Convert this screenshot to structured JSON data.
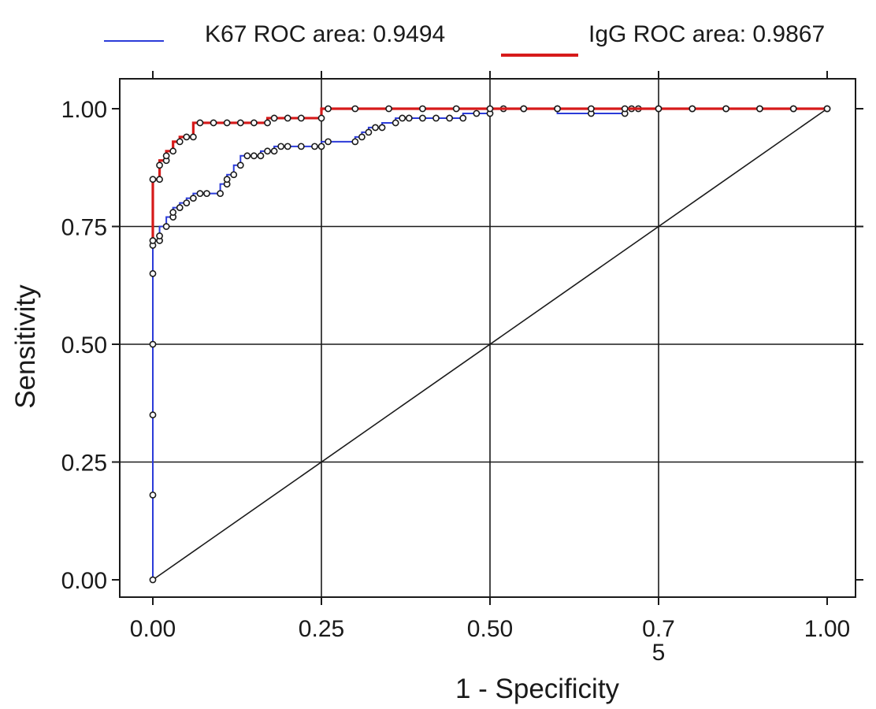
{
  "chart_data": {
    "type": "line",
    "title": "",
    "xlabel": "1 - Specificity",
    "ylabel": "Sensitivity",
    "xlim": [
      0,
      1
    ],
    "ylim": [
      0,
      1
    ],
    "x_ticks": [
      "0.00",
      "0.25",
      "0.50",
      "0.7\n5",
      "1.00"
    ],
    "x_tick_values": [
      0,
      0.25,
      0.5,
      0.75,
      1
    ],
    "y_ticks": [
      "0.00",
      "0.25",
      "0.50",
      "0.75",
      "1.00"
    ],
    "y_tick_values": [
      0,
      0.25,
      0.5,
      0.75,
      1
    ],
    "grid": true,
    "legend_position": "top",
    "series": [
      {
        "name": "K67 ROC area: 0.9494",
        "color": "#2b3bd9",
        "marker": "circle",
        "x": [
          0,
          0,
          0,
          0,
          0,
          0,
          0.01,
          0.01,
          0.02,
          0.03,
          0.03,
          0.04,
          0.05,
          0.06,
          0.07,
          0.08,
          0.1,
          0.11,
          0.11,
          0.12,
          0.13,
          0.14,
          0.15,
          0.16,
          0.17,
          0.18,
          0.19,
          0.2,
          0.22,
          0.24,
          0.25,
          0.26,
          0.3,
          0.31,
          0.32,
          0.33,
          0.34,
          0.36,
          0.37,
          0.38,
          0.4,
          0.42,
          0.44,
          0.46,
          0.48,
          0.5,
          0.52,
          0.55,
          0.6,
          0.65,
          0.7,
          0.71,
          0.72,
          0.75,
          0.8,
          0.85,
          0.9,
          0.95,
          1.0
        ],
        "y": [
          0,
          0.18,
          0.35,
          0.5,
          0.65,
          0.71,
          0.72,
          0.73,
          0.75,
          0.77,
          0.78,
          0.79,
          0.8,
          0.81,
          0.82,
          0.82,
          0.82,
          0.84,
          0.85,
          0.86,
          0.88,
          0.9,
          0.9,
          0.9,
          0.91,
          0.91,
          0.92,
          0.92,
          0.92,
          0.92,
          0.92,
          0.93,
          0.93,
          0.94,
          0.95,
          0.96,
          0.96,
          0.97,
          0.98,
          0.98,
          0.98,
          0.98,
          0.98,
          0.98,
          0.99,
          0.99,
          1.0,
          1.0,
          1.0,
          0.99,
          0.99,
          1.0,
          1.0,
          1.0,
          1.0,
          1.0,
          1.0,
          1.0,
          1.0
        ]
      },
      {
        "name": "IgG ROC area: 0.9867",
        "color": "#d61a1a",
        "marker": "circle",
        "x": [
          0,
          0,
          0.01,
          0.01,
          0.02,
          0.02,
          0.03,
          0.04,
          0.05,
          0.06,
          0.07,
          0.09,
          0.11,
          0.13,
          0.15,
          0.17,
          0.18,
          0.2,
          0.22,
          0.25,
          0.26,
          0.3,
          0.35,
          0.4,
          0.45,
          0.5,
          0.55,
          0.6,
          0.65,
          0.7,
          0.75,
          0.8,
          0.85,
          0.9,
          0.95,
          1.0
        ],
        "y": [
          0.72,
          0.85,
          0.85,
          0.88,
          0.89,
          0.9,
          0.91,
          0.93,
          0.94,
          0.94,
          0.97,
          0.97,
          0.97,
          0.97,
          0.97,
          0.97,
          0.98,
          0.98,
          0.98,
          0.98,
          1.0,
          1.0,
          1.0,
          1.0,
          1.0,
          1.0,
          1.0,
          1.0,
          1.0,
          1.0,
          1.0,
          1.0,
          1.0,
          1.0,
          1.0,
          1.0
        ]
      }
    ],
    "reference_line": {
      "x": [
        0,
        1
      ],
      "y": [
        0,
        1
      ],
      "color": "#1a1a1a"
    }
  }
}
